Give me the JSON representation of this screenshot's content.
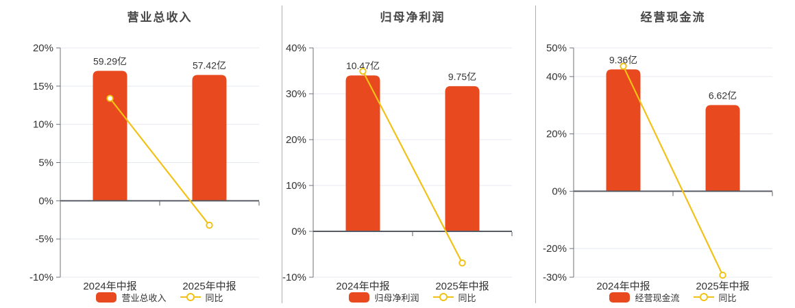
{
  "page": {
    "background": "#ffffff"
  },
  "colors": {
    "bar": "#e8491e",
    "line": "#f2c116",
    "text": "#333333",
    "title": "#464646",
    "grid": "#e4e9f1",
    "axis": "#6e7079",
    "zero_axis": "#565b63",
    "divider": "#adadad"
  },
  "chart_data": [
    {
      "type": "bar",
      "title": "营业总收入",
      "categories": [
        "2024年中报",
        "2025年中报"
      ],
      "bar_series": {
        "name": "营业总收入",
        "values": [
          59.29,
          57.42
        ],
        "labels": [
          "59.29亿",
          "57.42亿"
        ],
        "unit": "亿",
        "color": "#e8491e"
      },
      "line_series": {
        "name": "同比",
        "values": [
          13.4,
          -3.2
        ],
        "unit": "%",
        "color": "#f2c116"
      },
      "y_axis": {
        "min": -10,
        "max": 20,
        "ticks": [
          20,
          15,
          10,
          5,
          0,
          -5,
          -10
        ],
        "tick_labels": [
          "20%",
          "15%",
          "10%",
          "5%",
          "0%",
          "-5%",
          "-10%"
        ]
      },
      "legend": [
        "营业总收入",
        "同比"
      ],
      "grid": true,
      "legend_position": "bottom"
    },
    {
      "type": "bar",
      "title": "归母净利润",
      "categories": [
        "2024年中报",
        "2025年中报"
      ],
      "bar_series": {
        "name": "归母净利润",
        "values": [
          10.47,
          9.75
        ],
        "labels": [
          "10.47亿",
          "9.75亿"
        ],
        "unit": "亿",
        "color": "#e8491e"
      },
      "line_series": {
        "name": "同比",
        "values": [
          34.9,
          -6.9
        ],
        "unit": "%",
        "color": "#f2c116"
      },
      "y_axis": {
        "min": -10,
        "max": 40,
        "ticks": [
          40,
          30,
          20,
          10,
          0,
          -10
        ],
        "tick_labels": [
          "40%",
          "30%",
          "20%",
          "10%",
          "0%",
          "-10%"
        ]
      },
      "legend": [
        "归母净利润",
        "同比"
      ],
      "grid": true,
      "legend_position": "bottom"
    },
    {
      "type": "bar",
      "title": "经营现金流",
      "categories": [
        "2024年中报",
        "2025年中报"
      ],
      "bar_series": {
        "name": "经营现金流",
        "values": [
          9.36,
          6.62
        ],
        "labels": [
          "9.36亿",
          "6.62亿"
        ],
        "unit": "亿",
        "color": "#e8491e"
      },
      "line_series": {
        "name": "同比",
        "values": [
          43.6,
          -29.3
        ],
        "unit": "%",
        "color": "#f2c116"
      },
      "y_axis": {
        "min": -30,
        "max": 50,
        "ticks": [
          50,
          40,
          20,
          0,
          -20,
          -30
        ],
        "tick_labels": [
          "50%",
          "40%",
          "20%",
          "0%",
          "-20%",
          "-30%"
        ]
      },
      "legend": [
        "经营现金流",
        "同比"
      ],
      "grid": true,
      "legend_position": "bottom"
    }
  ]
}
